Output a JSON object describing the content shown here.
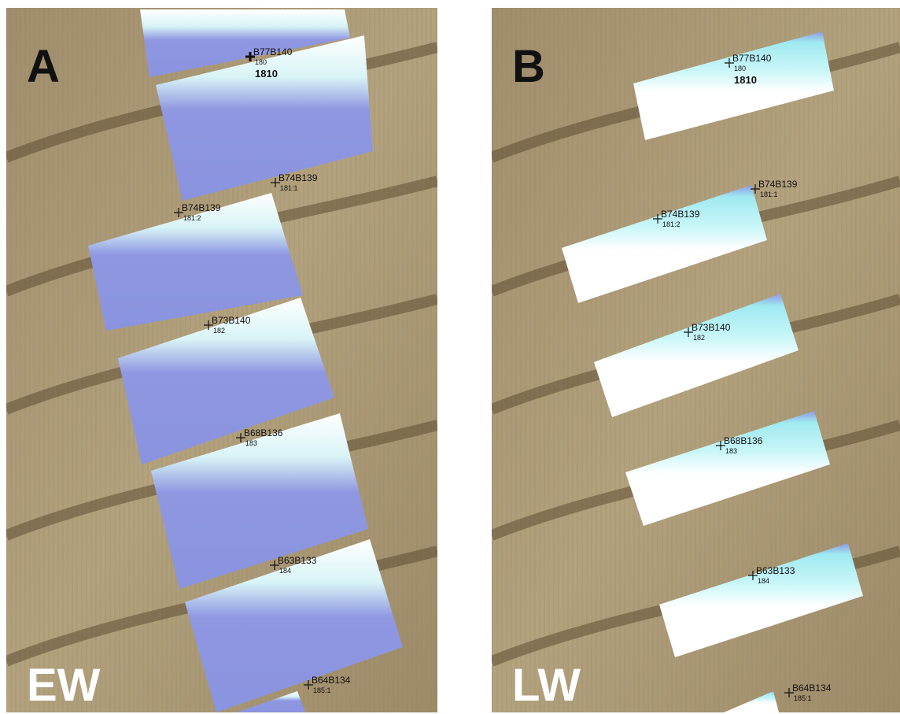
{
  "panels": [
    {
      "label": "A",
      "footer": "EW",
      "markers": [
        {
          "id": "B77B140",
          "sub": "180",
          "year": "1810"
        },
        {
          "id": "B74B139",
          "sub": "181:1"
        },
        {
          "id": "B74B139",
          "sub": "181:2"
        },
        {
          "id": "B73B140",
          "sub": "182"
        },
        {
          "id": "B68B136",
          "sub": "183"
        },
        {
          "id": "B63B133",
          "sub": "184"
        },
        {
          "id": "B64B134",
          "sub": "185:1"
        }
      ]
    },
    {
      "label": "B",
      "footer": "LW",
      "markers": [
        {
          "id": "B77B140",
          "sub": "180",
          "year": "1810"
        },
        {
          "id": "B74B139",
          "sub": "181:1"
        },
        {
          "id": "B74B139",
          "sub": "181:2"
        },
        {
          "id": "B73B140",
          "sub": "182"
        },
        {
          "id": "B68B136",
          "sub": "183"
        },
        {
          "id": "B63B133",
          "sub": "184"
        },
        {
          "id": "B64B134",
          "sub": "185:1"
        }
      ]
    }
  ]
}
